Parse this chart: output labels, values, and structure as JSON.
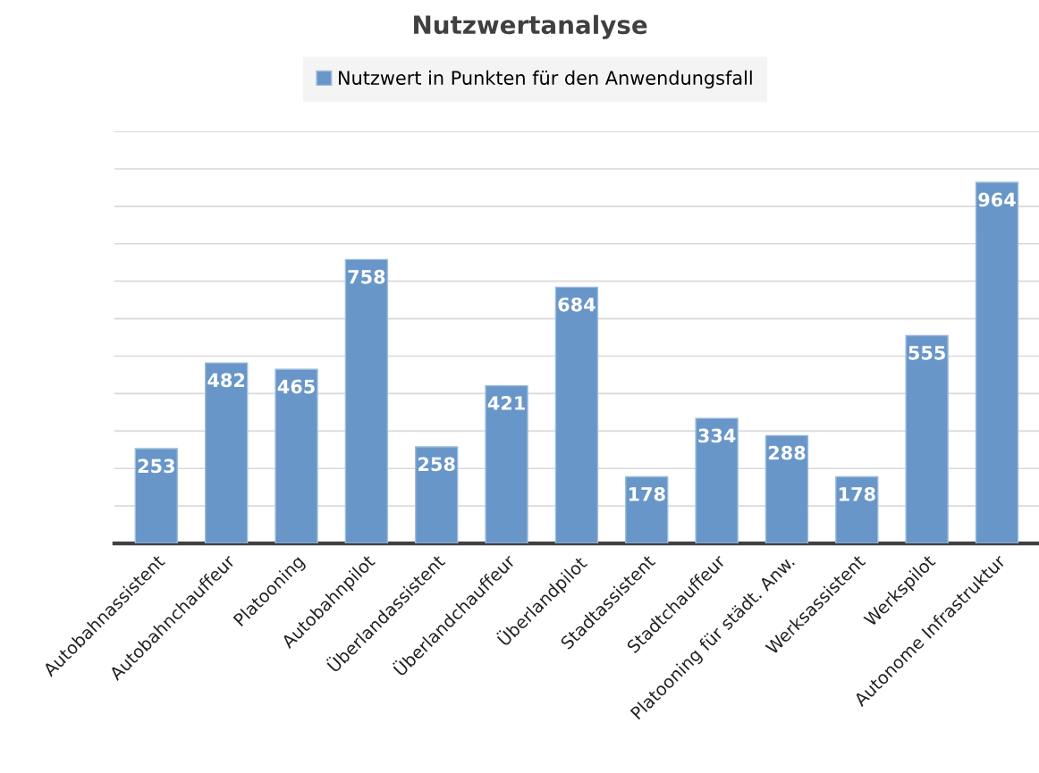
{
  "chart_data": {
    "type": "bar",
    "title": "Nutzwertanalyse",
    "categories": [
      "Autobahnassistent",
      "Autobahnchauffeur",
      "Platooning",
      "Autobahnpilot",
      "Überlandassistent",
      "Überlandchauffeur",
      "Überlandpilot",
      "Stadtassistent",
      "Stadtchauffeur",
      "Platooning für städt. Anw.",
      "Werksassistent",
      "Werkspilot",
      "Autonome Infrastruktur"
    ],
    "series": [
      {
        "name": "Nutzwert in Punkten für den Anwendungsfall",
        "color": "#6896c8",
        "values": [
          253,
          482,
          465,
          758,
          258,
          421,
          684,
          178,
          334,
          288,
          178,
          555,
          964
        ]
      }
    ],
    "ylim": [
      0,
      1100
    ],
    "yticks": [
      {
        "value": 0,
        "label": null
      },
      {
        "value": 100,
        "label": null
      },
      {
        "value": 200,
        "label": null
      },
      {
        "value": 300,
        "label": null
      },
      {
        "value": 400,
        "label": null
      },
      {
        "value": 500,
        "label": null
      },
      {
        "value": 600,
        "label": null
      },
      {
        "value": 700,
        "label": null
      },
      {
        "value": 800,
        "label": null
      },
      {
        "value": 900,
        "label": null
      },
      {
        "value": 1000,
        "label": null
      },
      {
        "value": 1100,
        "label": null
      }
    ],
    "tick_labels": "x",
    "grid": "y",
    "legend": "top",
    "data_labels": true
  }
}
